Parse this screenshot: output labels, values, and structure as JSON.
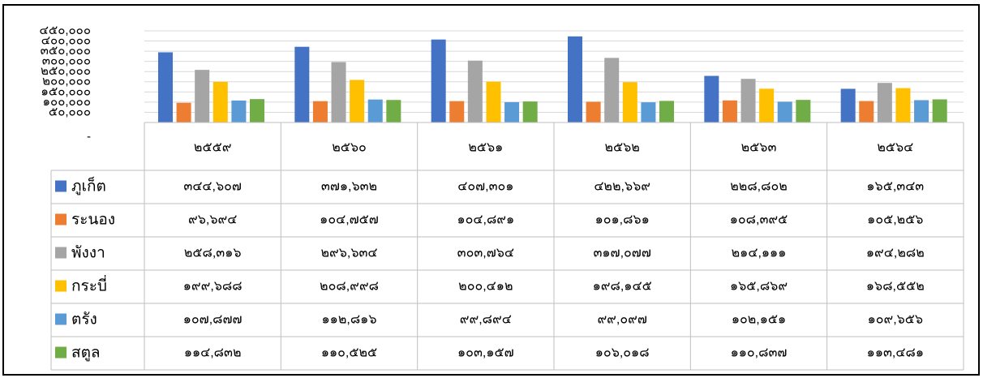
{
  "chart_data": {
    "type": "bar",
    "categories": [
      "๒๕๕๙",
      "๒๕๖๐",
      "๒๕๖๑",
      "๒๕๖๒",
      "๒๕๖๓",
      "๒๕๖๔"
    ],
    "series": [
      {
        "name": "ภูเก็ต",
        "color": "#4472c4",
        "values": [
          344607,
          371632,
          407301,
          422669,
          228802,
          165343
        ],
        "value_labels": [
          "๓๔๔,๖๐๗",
          "๓๗๑,๖๓๒",
          "๔๐๗,๓๐๑",
          "๔๒๒,๖๖๙",
          "๒๒๘,๘๐๒",
          "๑๖๕,๓๔๓"
        ]
      },
      {
        "name": "ระนอง",
        "color": "#ed7d31",
        "values": [
          96694,
          104757,
          104891,
          101861,
          108395,
          105256
        ],
        "value_labels": [
          "๙๖,๖๙๔",
          "๑๐๔,๗๕๗",
          "๑๐๔,๘๙๑",
          "๑๐๑,๘๖๑",
          "๑๐๘,๓๙๕",
          "๑๐๕,๒๕๖"
        ]
      },
      {
        "name": "พังงา",
        "color": "#a5a5a5",
        "values": [
          258316,
          296634,
          303764,
          317077,
          214111,
          194282
        ],
        "value_labels": [
          "๒๕๘,๓๑๖",
          "๒๙๖,๖๓๔",
          "๓๐๓,๗๖๔",
          "๓๑๗,๐๗๗",
          "๒๑๔,๑๑๑",
          "๑๙๔,๒๘๒"
        ]
      },
      {
        "name": "กระบี่",
        "color": "#ffc000",
        "values": [
          199688,
          208998,
          200412,
          198145,
          165869,
          168552
        ],
        "value_labels": [
          "๑๙๙,๖๘๘",
          "๒๐๘,๙๙๘",
          "๒๐๐,๔๑๒",
          "๑๙๘,๑๔๕",
          "๑๖๕,๘๖๙",
          "๑๖๘,๕๕๒"
        ]
      },
      {
        "name": "ตรัง",
        "color": "#5b9bd5",
        "values": [
          107877,
          112816,
          99894,
          99097,
          102151,
          109656
        ],
        "value_labels": [
          "๑๐๗,๘๗๗",
          "๑๑๒,๘๑๖",
          "๙๙,๘๙๔",
          "๙๙,๐๙๗",
          "๑๐๒,๑๕๑",
          "๑๐๙,๖๕๖"
        ]
      },
      {
        "name": "สตูล",
        "color": "#70ad47",
        "values": [
          114832,
          110525,
          103157,
          106018,
          110837,
          113481
        ],
        "value_labels": [
          "๑๑๔,๘๓๒",
          "๑๑๐,๕๒๕",
          "๑๐๓,๑๕๗",
          "๑๐๖,๐๑๘",
          "๑๑๐,๘๓๗",
          "๑๑๓,๔๘๑"
        ]
      }
    ],
    "ylim": [
      0,
      450000
    ],
    "yticks": [
      {
        "value": 0,
        "label": "-"
      },
      {
        "value": 50000,
        "label": "๕๐,๐๐๐"
      },
      {
        "value": 100000,
        "label": "๑๐๐,๐๐๐"
      },
      {
        "value": 150000,
        "label": "๑๕๐,๐๐๐"
      },
      {
        "value": 200000,
        "label": "๒๐๐,๐๐๐"
      },
      {
        "value": 250000,
        "label": "๒๕๐,๐๐๐"
      },
      {
        "value": 300000,
        "label": "๓๐๐,๐๐๐"
      },
      {
        "value": 350000,
        "label": "๓๕๐,๐๐๐"
      },
      {
        "value": 400000,
        "label": "๔๐๐,๐๐๐"
      },
      {
        "value": 450000,
        "label": "๔๕๐,๐๐๐"
      }
    ],
    "grid": true
  }
}
